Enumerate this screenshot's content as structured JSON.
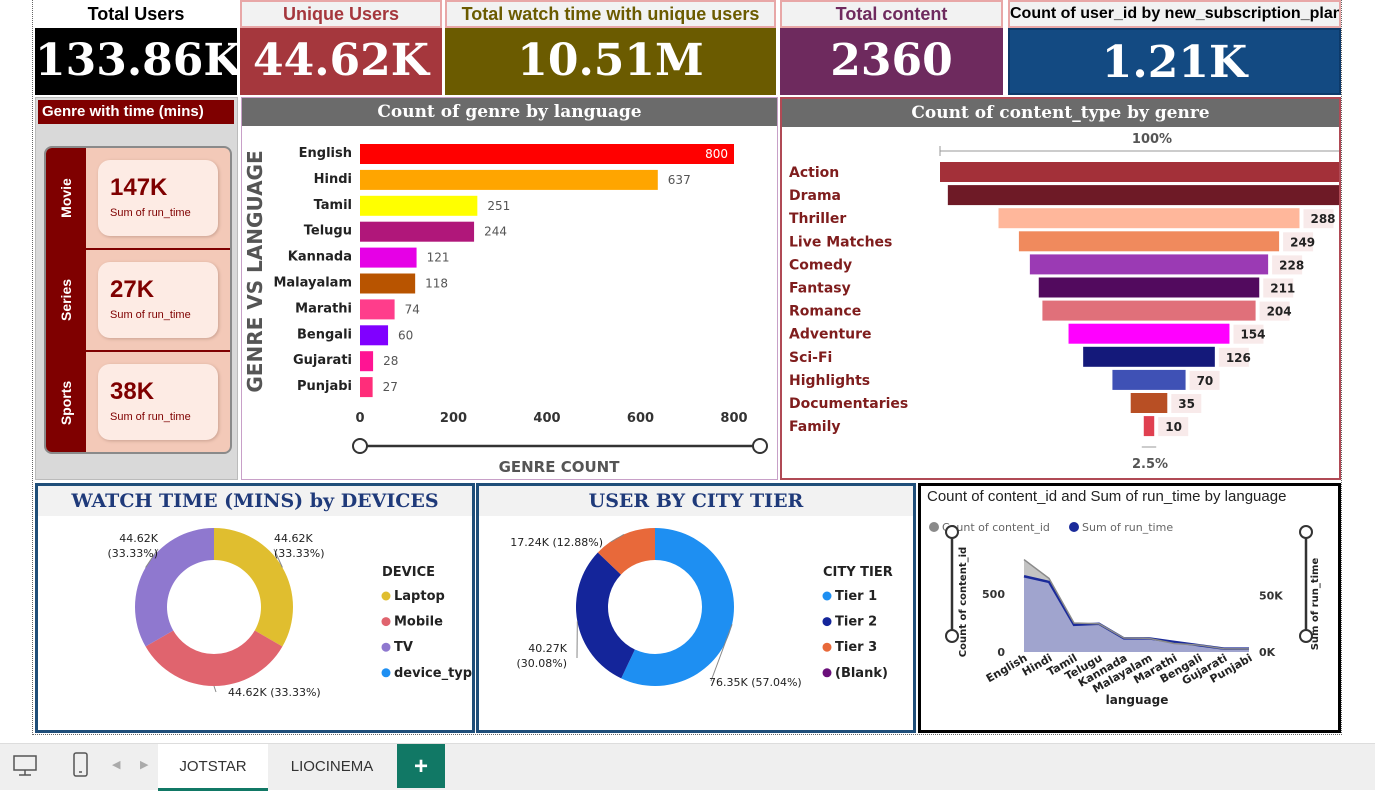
{
  "kpis": {
    "total_users": {
      "title": "Total Users",
      "value": "133.86K"
    },
    "unique_users": {
      "title": "Unique Users",
      "value": "44.62K"
    },
    "watch_time": {
      "title": "Total watch time with unique users",
      "value": "10.51M"
    },
    "total_content": {
      "title": "Total content",
      "value": "2360"
    },
    "subscription": {
      "title": "Count of user_id by new_subscription_plan",
      "value": "1.21K"
    }
  },
  "genre_time": {
    "title": "Genre with time (mins)",
    "cards": [
      {
        "tab": "Movie",
        "value": "147K",
        "caption": "Sum of run_time"
      },
      {
        "tab": "Series",
        "value": "27K",
        "caption": "Sum of run_time"
      },
      {
        "tab": "Sports",
        "value": "38K",
        "caption": "Sum of run_time"
      }
    ]
  },
  "colors": {
    "kpi_black": "#000000",
    "kpi_red": "#a5373d",
    "kpi_olive": "#6b5b00",
    "kpi_purple": "#6e2a5e",
    "kpi_blue": "#134a82",
    "panel_grey": "#6b6b6b"
  },
  "chart_data": [
    {
      "type": "bar",
      "title": "Count of genre by language",
      "xlabel": "GENRE COUNT",
      "ylabel": "GENRE VS LANGUAGE",
      "categories": [
        "English",
        "Hindi",
        "Tamil",
        "Telugu",
        "Kannada",
        "Malayalam",
        "Marathi",
        "Bengali",
        "Gujarati",
        "Punjabi"
      ],
      "values": [
        800,
        637,
        251,
        244,
        121,
        118,
        74,
        60,
        28,
        27
      ],
      "colors": [
        "#ff0000",
        "#ffa500",
        "#ffff00",
        "#b0177a",
        "#e600e6",
        "#b85400",
        "#ff3d8b",
        "#8000ff",
        "#ff1493",
        "#ff2d7a"
      ],
      "xticks": [
        "0",
        "200",
        "400",
        "600",
        "800"
      ],
      "xlim": [
        0,
        800
      ]
    },
    {
      "type": "bar",
      "subtype": "funnel",
      "title": "Count of content_type by genre",
      "top_label": "100%",
      "bottom_label": "2.5%",
      "categories": [
        "Action",
        "Drama",
        "Thriller",
        "Live Matches",
        "Comedy",
        "Fantasy",
        "Romance",
        "Adventure",
        "Sci-Fi",
        "Highlights",
        "Documentaries",
        "Family"
      ],
      "values": [
        400,
        385,
        288,
        249,
        228,
        211,
        204,
        154,
        126,
        70,
        35,
        10
      ],
      "labels": [
        "",
        "",
        "288",
        "249",
        "228",
        "211",
        "204",
        "154",
        "126",
        "70",
        "35",
        "10"
      ],
      "colors": [
        "#a33039",
        "#6e1a26",
        "#ffb79b",
        "#f08a5d",
        "#9b3ab4",
        "#520a5e",
        "#e0707a",
        "#ff00ff",
        "#14197a",
        "#3f51b5",
        "#b84f24",
        "#e04050"
      ]
    },
    {
      "type": "pie",
      "subtype": "donut",
      "title": "WATCH TIME (MINS) by DEVICES",
      "legend_title": "DEVICE",
      "legend": [
        "Laptop",
        "Mobile",
        "TV",
        "device_type"
      ],
      "legend_colors": [
        "#e0be2f",
        "#e0646e",
        "#8f78cf",
        "#1e8ff2"
      ],
      "slices": [
        {
          "name": "Laptop",
          "value": 44.62,
          "label": "44.62K\n(33.33%)"
        },
        {
          "name": "Mobile",
          "value": 44.62,
          "label": "44.62K (33.33%)"
        },
        {
          "name": "TV",
          "value": 44.62,
          "label": "44.62K\n(33.33%)"
        }
      ]
    },
    {
      "type": "pie",
      "subtype": "donut",
      "title": "USER BY CITY TIER",
      "legend_title": "CITY TIER",
      "legend": [
        "Tier 1",
        "Tier 2",
        "Tier 3",
        "(Blank)"
      ],
      "legend_colors": [
        "#1e8ff2",
        "#14259a",
        "#e8693a",
        "#6a0f7a"
      ],
      "slices": [
        {
          "name": "Tier 1",
          "value": 76.35,
          "label": "76.35K (57.04%)"
        },
        {
          "name": "Tier 2",
          "value": 40.27,
          "label": "40.27K\n(30.08%)"
        },
        {
          "name": "Tier 3",
          "value": 17.24,
          "label": "17.24K (12.88%)"
        }
      ]
    },
    {
      "type": "area",
      "title": "Count of content_id and Sum of run_time by language",
      "xlabel": "language",
      "ylabel": "Count of content_id",
      "y2label": "Sum of run_time",
      "categories": [
        "English",
        "Hindi",
        "Tamil",
        "Telugu",
        "Kannada",
        "Malayalam",
        "Marathi",
        "Bengali",
        "Gujarati",
        "Punjabi"
      ],
      "series": [
        {
          "name": "Count of content_id",
          "axis": "left",
          "values": [
            800,
            637,
            251,
            244,
            121,
            118,
            74,
            60,
            28,
            27
          ],
          "color": "#9e9e9e"
        },
        {
          "name": "Sum of run_time",
          "axis": "right",
          "values": [
            67000,
            62000,
            24000,
            25000,
            12000,
            12000,
            9000,
            6000,
            3000,
            3000
          ],
          "color": "#1a2a9a"
        }
      ],
      "yticks": [
        "0",
        "500"
      ],
      "y2ticks": [
        "0K",
        "50K"
      ],
      "ylim": [
        0,
        900
      ],
      "y2lim": [
        0,
        92000
      ]
    }
  ],
  "tabs": {
    "page1": "JOTSTAR",
    "page2": "LIOCINEMA",
    "add": "+"
  }
}
